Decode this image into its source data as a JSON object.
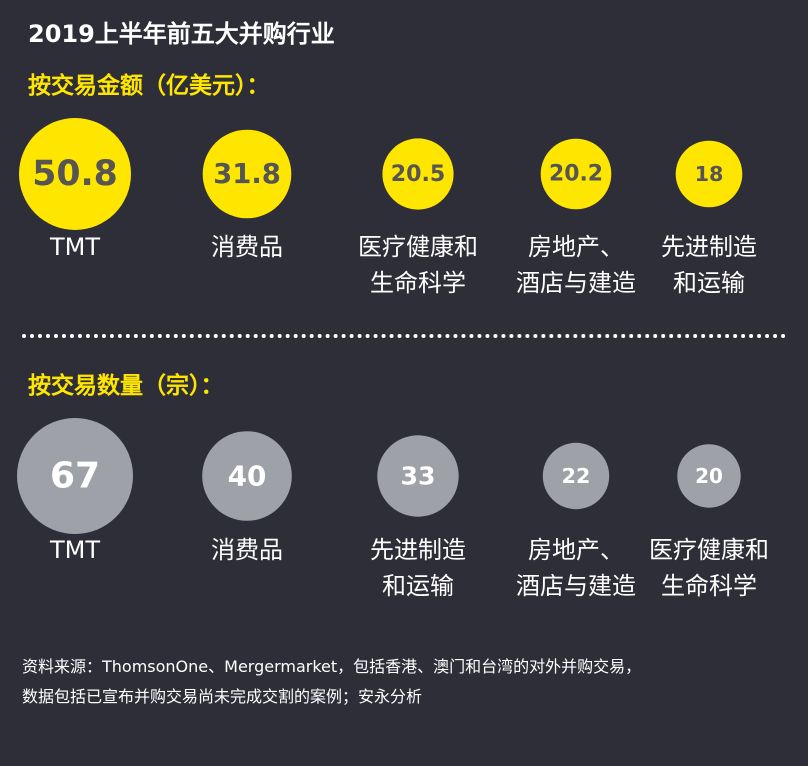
{
  "title": "2019上半年前五大并购行业",
  "colors": {
    "background": "#2e2e38",
    "amount_bubble": "#ffe600",
    "amount_value": "#555555",
    "count_bubble": "#9ea1a8",
    "count_value": "#ffffff",
    "label": "#ffffff",
    "heading": "#ffe600"
  },
  "chart_data": [
    {
      "type": "bubble",
      "title": "按交易金额（亿美元）：",
      "categories": [
        [
          "TMT"
        ],
        [
          "消费品"
        ],
        [
          "医疗健康和",
          "生命科学"
        ],
        [
          "房地产、",
          "酒店与建造"
        ],
        [
          "先进制造",
          "和运输"
        ]
      ],
      "values": [
        50.8,
        31.8,
        20.5,
        20.2,
        18
      ],
      "value_labels": [
        "50.8",
        "31.8",
        "20.5",
        "20.2",
        "18"
      ]
    },
    {
      "type": "bubble",
      "title": "按交易数量（宗）：",
      "categories": [
        [
          "TMT"
        ],
        [
          "消费品"
        ],
        [
          "先进制造",
          "和运输"
        ],
        [
          "房地产、",
          "酒店与建造"
        ],
        [
          "医疗健康和",
          "生命科学"
        ]
      ],
      "values": [
        67,
        40,
        33,
        22,
        20
      ],
      "value_labels": [
        "67",
        "40",
        "33",
        "22",
        "20"
      ]
    }
  ],
  "source": {
    "line1": "资料来源：ThomsonOne、Mergermarket，包括香港、澳门和台湾的对外并购交易，",
    "line2": "数据包括已宣布并购交易尚未完成交割的案例；安永分析"
  }
}
